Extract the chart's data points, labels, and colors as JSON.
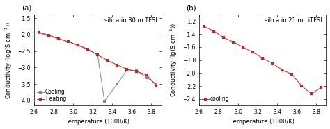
{
  "panel_a": {
    "title": "silica in 30 m TFSI",
    "xlabel": "Temperature (1000/K)",
    "ylabel": "Conductivity (log(S·cm⁻¹))",
    "xlim": [
      2.6,
      3.9
    ],
    "ylim": [
      -4.15,
      -1.4
    ],
    "xticks": [
      2.6,
      2.8,
      3.0,
      3.2,
      3.4,
      3.6,
      3.8
    ],
    "yticks": [
      -4.0,
      -3.5,
      -3.0,
      -2.5,
      -2.0,
      -1.5
    ],
    "cooling_x": [
      2.65,
      2.75,
      2.85,
      2.95,
      3.05,
      3.15,
      3.25,
      3.32,
      3.45,
      3.55,
      3.65,
      3.75,
      3.85
    ],
    "cooling_y": [
      -1.95,
      -2.05,
      -2.13,
      -2.22,
      -2.32,
      -2.44,
      -2.62,
      -4.02,
      -3.5,
      -3.07,
      -3.1,
      -3.3,
      -3.5
    ],
    "heating_x": [
      2.65,
      2.75,
      2.85,
      2.95,
      3.05,
      3.15,
      3.25,
      3.35,
      3.45,
      3.55,
      3.65,
      3.75,
      3.85
    ],
    "heating_y": [
      -1.93,
      -2.02,
      -2.12,
      -2.22,
      -2.33,
      -2.45,
      -2.62,
      -2.78,
      -2.92,
      -3.05,
      -3.12,
      -3.22,
      -3.55
    ],
    "cooling_color": "#888888",
    "heating_color": "#cc2222",
    "marker": "s",
    "markersize": 2.8,
    "label_a": "(a)"
  },
  "panel_b": {
    "title": "silica in 21 m LiTFSI",
    "xlabel": "Temperature (1000/K)",
    "ylabel": "Conductivity (lg(S cm⁻¹))",
    "xlim": [
      2.6,
      3.9
    ],
    "ylim": [
      -2.5,
      -1.1
    ],
    "xticks": [
      2.6,
      2.8,
      3.0,
      3.2,
      3.4,
      3.6,
      3.8
    ],
    "yticks": [
      -2.4,
      -2.2,
      -2.0,
      -1.8,
      -1.6,
      -1.4,
      -1.2
    ],
    "cooling_x": [
      2.65,
      2.75,
      2.85,
      2.95,
      3.05,
      3.15,
      3.25,
      3.35,
      3.45,
      3.55,
      3.65,
      3.75,
      3.85
    ],
    "cooling_y": [
      -1.28,
      -1.35,
      -1.45,
      -1.52,
      -1.6,
      -1.68,
      -1.77,
      -1.85,
      -1.95,
      -2.02,
      -2.2,
      -2.32,
      -2.22
    ],
    "cooling_color": "#cc2222",
    "marker": "s",
    "markersize": 2.8,
    "label_b": "(b)"
  },
  "fig_bg": "#ffffff",
  "axes_bg": "#ffffff",
  "fontsize_label": 6.0,
  "fontsize_tick": 5.5,
  "fontsize_title": 6.0,
  "fontsize_legend": 5.5,
  "fontsize_panel": 7.5
}
